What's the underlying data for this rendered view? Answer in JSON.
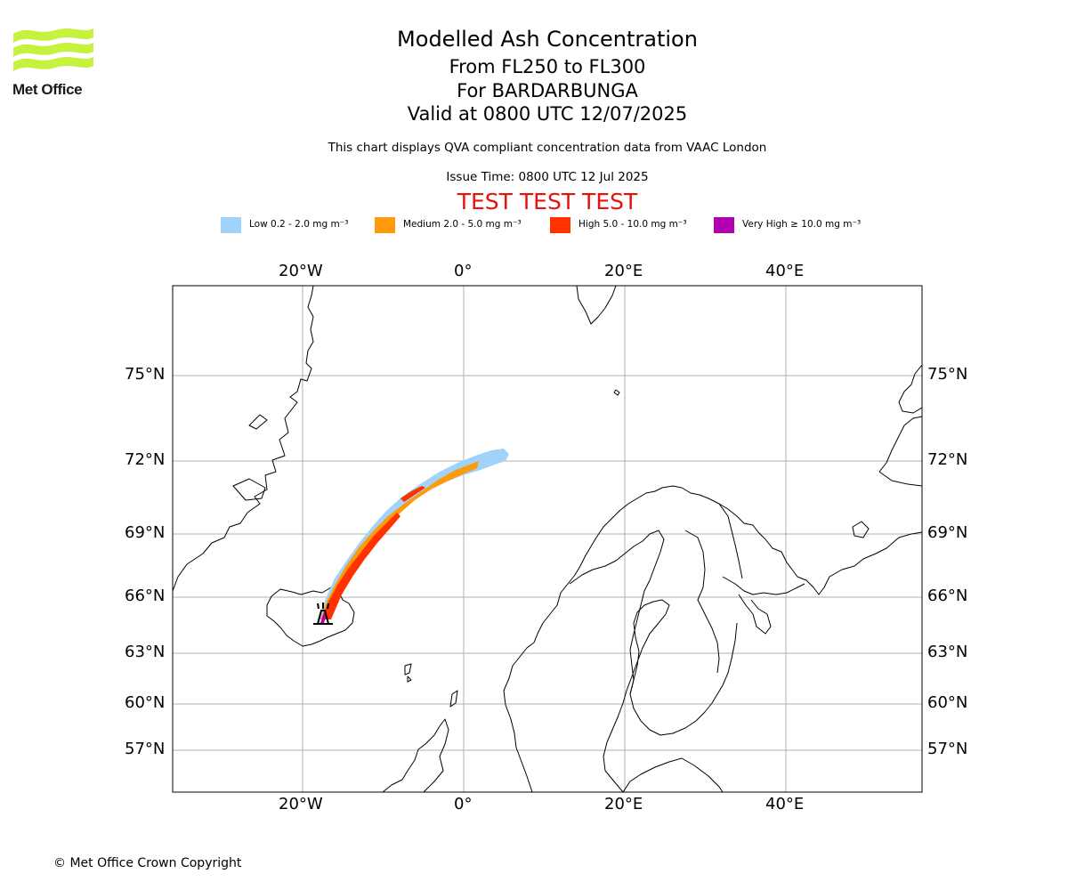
{
  "logo": {
    "text": "Met Office",
    "color": "#c5f23a"
  },
  "header": {
    "title": "Modelled Ash Concentration",
    "level_range": "From FL250 to FL300",
    "volcano": "For BARDARBUNGA",
    "valid_time": "Valid at 0800 UTC 12/07/2025",
    "compliance_note": "This chart displays QVA compliant concentration data from VAAC London",
    "issue_time": "Issue Time: 0800 UTC 12 Jul 2025",
    "test_banner": "TEST TEST TEST"
  },
  "legend": [
    {
      "label": "Low 0.2 - 2.0 mg m⁻³",
      "color": "#a0d2fa"
    },
    {
      "label": "Medium 2.0 - 5.0 mg m⁻³",
      "color": "#ff9b0a"
    },
    {
      "label": "High 5.0 - 10.0 mg m⁻³",
      "color": "#ff3200"
    },
    {
      "label": "Very High  ≥  10.0 mg m⁻³",
      "color": "#b000b0"
    }
  ],
  "map": {
    "lon_labels": [
      "20°W",
      "0°",
      "20°E",
      "40°E"
    ],
    "lat_labels": [
      "75°N",
      "72°N",
      "69°N",
      "66°N",
      "63°N",
      "60°N",
      "57°N"
    ],
    "volcano_marker": "volcano-icon"
  },
  "footer": {
    "copyright": "© Met Office Crown Copyright"
  }
}
